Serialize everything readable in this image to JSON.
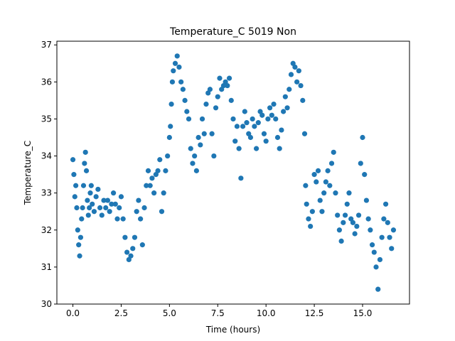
{
  "chart_data": {
    "type": "scatter",
    "title": "Temperature_C 5019 Non",
    "xlabel": "Time (hours)",
    "ylabel": "Temperature_C",
    "xlim": [
      -0.83,
      17.43
    ],
    "ylim": [
      30.0,
      37.1
    ],
    "grid": false,
    "marker_color": "#1f77b4",
    "xticks": [
      0.0,
      2.5,
      5.0,
      7.5,
      10.0,
      12.5,
      15.0
    ],
    "xtick_labels": [
      "0.0",
      "2.5",
      "5.0",
      "7.5",
      "10.0",
      "12.5",
      "15.0"
    ],
    "yticks": [
      30,
      31,
      32,
      33,
      34,
      35,
      36,
      37
    ],
    "ytick_labels": [
      "30",
      "31",
      "32",
      "33",
      "34",
      "35",
      "36",
      "37"
    ],
    "points": [
      [
        0.0,
        33.9
      ],
      [
        0.05,
        33.5
      ],
      [
        0.1,
        32.9
      ],
      [
        0.15,
        33.2
      ],
      [
        0.2,
        32.6
      ],
      [
        0.25,
        32.0
      ],
      [
        0.3,
        31.6
      ],
      [
        0.35,
        31.3
      ],
      [
        0.4,
        31.8
      ],
      [
        0.45,
        32.3
      ],
      [
        0.5,
        32.6
      ],
      [
        0.55,
        33.2
      ],
      [
        0.6,
        33.8
      ],
      [
        0.65,
        34.1
      ],
      [
        0.7,
        33.6
      ],
      [
        0.75,
        32.8
      ],
      [
        0.8,
        32.4
      ],
      [
        0.85,
        32.6
      ],
      [
        0.9,
        33.0
      ],
      [
        0.95,
        33.2
      ],
      [
        1.0,
        32.7
      ],
      [
        1.1,
        32.5
      ],
      [
        1.2,
        32.9
      ],
      [
        1.3,
        33.1
      ],
      [
        1.4,
        32.6
      ],
      [
        1.5,
        32.4
      ],
      [
        1.6,
        32.8
      ],
      [
        1.7,
        32.6
      ],
      [
        1.8,
        32.8
      ],
      [
        1.9,
        32.5
      ],
      [
        2.0,
        32.7
      ],
      [
        2.1,
        33.0
      ],
      [
        2.2,
        32.7
      ],
      [
        2.3,
        32.3
      ],
      [
        2.4,
        32.6
      ],
      [
        2.5,
        32.9
      ],
      [
        2.6,
        32.3
      ],
      [
        2.7,
        31.8
      ],
      [
        2.8,
        31.4
      ],
      [
        2.9,
        31.2
      ],
      [
        3.0,
        31.3
      ],
      [
        3.1,
        31.5
      ],
      [
        3.2,
        31.8
      ],
      [
        3.3,
        32.5
      ],
      [
        3.4,
        32.8
      ],
      [
        3.5,
        32.3
      ],
      [
        3.6,
        31.6
      ],
      [
        3.7,
        32.6
      ],
      [
        3.8,
        33.2
      ],
      [
        3.9,
        33.6
      ],
      [
        4.0,
        33.2
      ],
      [
        4.1,
        33.4
      ],
      [
        4.2,
        33.0
      ],
      [
        4.3,
        33.5
      ],
      [
        4.4,
        33.6
      ],
      [
        4.5,
        33.9
      ],
      [
        4.6,
        32.5
      ],
      [
        4.7,
        33.0
      ],
      [
        4.8,
        33.6
      ],
      [
        4.9,
        34.0
      ],
      [
        5.0,
        34.5
      ],
      [
        5.05,
        34.8
      ],
      [
        5.1,
        35.4
      ],
      [
        5.15,
        36.0
      ],
      [
        5.2,
        36.3
      ],
      [
        5.3,
        36.5
      ],
      [
        5.4,
        36.7
      ],
      [
        5.5,
        36.4
      ],
      [
        5.6,
        36.0
      ],
      [
        5.7,
        35.8
      ],
      [
        5.8,
        35.5
      ],
      [
        5.9,
        35.2
      ],
      [
        6.0,
        35.0
      ],
      [
        6.1,
        34.2
      ],
      [
        6.2,
        33.8
      ],
      [
        6.3,
        34.0
      ],
      [
        6.4,
        33.6
      ],
      [
        6.5,
        34.5
      ],
      [
        6.6,
        34.3
      ],
      [
        6.7,
        35.0
      ],
      [
        6.8,
        34.6
      ],
      [
        6.9,
        35.4
      ],
      [
        7.0,
        35.7
      ],
      [
        7.1,
        35.8
      ],
      [
        7.2,
        34.6
      ],
      [
        7.3,
        34.0
      ],
      [
        7.4,
        35.3
      ],
      [
        7.5,
        35.6
      ],
      [
        7.6,
        36.1
      ],
      [
        7.7,
        35.8
      ],
      [
        7.8,
        35.9
      ],
      [
        7.9,
        36.0
      ],
      [
        8.0,
        35.9
      ],
      [
        8.1,
        36.1
      ],
      [
        8.2,
        35.5
      ],
      [
        8.3,
        35.0
      ],
      [
        8.4,
        34.4
      ],
      [
        8.5,
        34.8
      ],
      [
        8.6,
        34.2
      ],
      [
        8.7,
        33.4
      ],
      [
        8.8,
        34.8
      ],
      [
        8.9,
        35.2
      ],
      [
        9.0,
        34.9
      ],
      [
        9.1,
        34.6
      ],
      [
        9.2,
        34.5
      ],
      [
        9.3,
        35.0
      ],
      [
        9.4,
        34.8
      ],
      [
        9.5,
        34.2
      ],
      [
        9.6,
        34.9
      ],
      [
        9.7,
        35.2
      ],
      [
        9.8,
        35.1
      ],
      [
        9.9,
        34.6
      ],
      [
        10.0,
        34.4
      ],
      [
        10.1,
        35.0
      ],
      [
        10.2,
        35.3
      ],
      [
        10.3,
        35.1
      ],
      [
        10.4,
        35.4
      ],
      [
        10.5,
        35.0
      ],
      [
        10.6,
        34.5
      ],
      [
        10.7,
        34.2
      ],
      [
        10.8,
        34.7
      ],
      [
        10.9,
        35.2
      ],
      [
        11.0,
        35.6
      ],
      [
        11.1,
        35.3
      ],
      [
        11.2,
        35.8
      ],
      [
        11.3,
        36.2
      ],
      [
        11.4,
        36.5
      ],
      [
        11.5,
        36.4
      ],
      [
        11.6,
        36.0
      ],
      [
        11.7,
        36.3
      ],
      [
        11.8,
        35.9
      ],
      [
        11.9,
        35.5
      ],
      [
        12.0,
        34.6
      ],
      [
        12.05,
        33.2
      ],
      [
        12.1,
        32.7
      ],
      [
        12.2,
        32.3
      ],
      [
        12.3,
        32.1
      ],
      [
        12.4,
        32.5
      ],
      [
        12.5,
        33.5
      ],
      [
        12.6,
        33.3
      ],
      [
        12.7,
        33.6
      ],
      [
        12.8,
        32.8
      ],
      [
        12.9,
        32.5
      ],
      [
        13.0,
        33.0
      ],
      [
        13.1,
        33.3
      ],
      [
        13.2,
        33.6
      ],
      [
        13.3,
        33.2
      ],
      [
        13.4,
        33.8
      ],
      [
        13.5,
        34.1
      ],
      [
        13.6,
        33.0
      ],
      [
        13.7,
        32.4
      ],
      [
        13.8,
        32.0
      ],
      [
        13.9,
        31.7
      ],
      [
        14.0,
        32.2
      ],
      [
        14.1,
        32.4
      ],
      [
        14.2,
        32.7
      ],
      [
        14.3,
        33.0
      ],
      [
        14.4,
        32.3
      ],
      [
        14.5,
        32.2
      ],
      [
        14.6,
        31.9
      ],
      [
        14.7,
        32.1
      ],
      [
        14.8,
        32.4
      ],
      [
        14.9,
        33.8
      ],
      [
        15.0,
        34.5
      ],
      [
        15.1,
        33.5
      ],
      [
        15.2,
        32.8
      ],
      [
        15.3,
        32.3
      ],
      [
        15.4,
        32.0
      ],
      [
        15.5,
        31.6
      ],
      [
        15.6,
        31.4
      ],
      [
        15.7,
        31.0
      ],
      [
        15.8,
        30.4
      ],
      [
        15.9,
        31.2
      ],
      [
        16.0,
        31.8
      ],
      [
        16.1,
        32.3
      ],
      [
        16.2,
        32.7
      ],
      [
        16.3,
        32.2
      ],
      [
        16.4,
        31.8
      ],
      [
        16.5,
        31.5
      ],
      [
        16.6,
        32.0
      ]
    ]
  }
}
